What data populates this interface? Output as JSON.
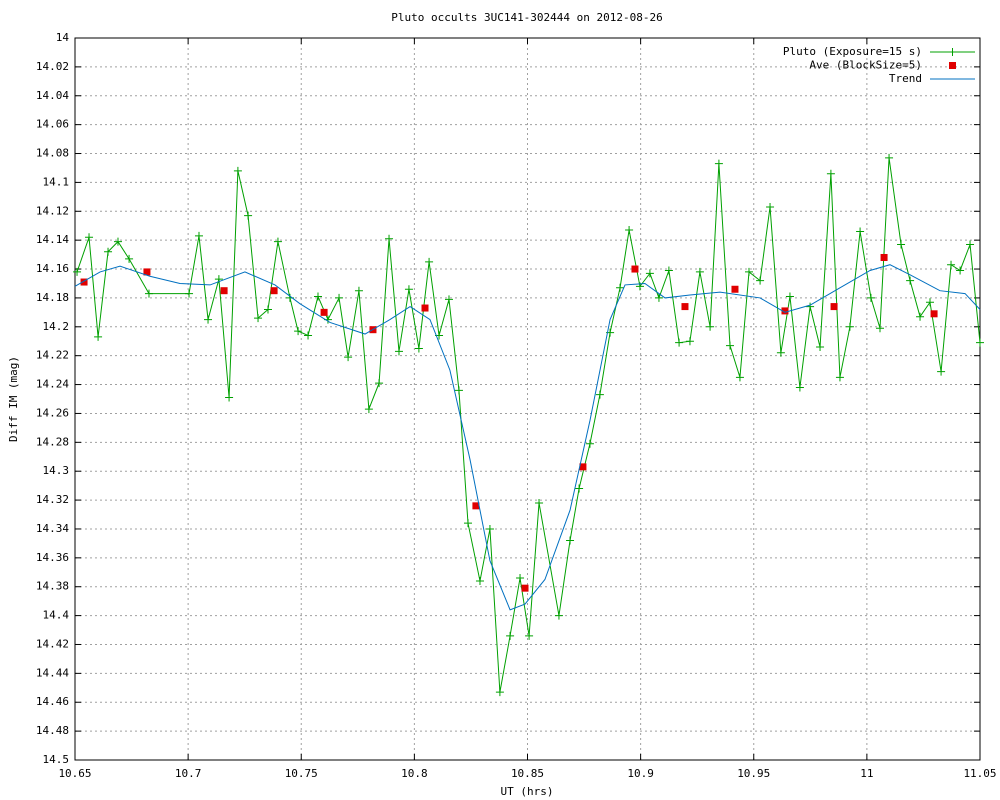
{
  "chart_data": {
    "type": "line",
    "title": "Pluto occults 3UC141-302444 on 2012-08-26",
    "x_label": "UT (hrs)",
    "y_label": "Diff IM (mag)",
    "xlim": [
      10.65,
      11.05
    ],
    "xticks": [
      10.65,
      10.7,
      10.75,
      10.8,
      10.85,
      10.9,
      10.95,
      11,
      11.05
    ],
    "ylim": [
      14.5,
      14
    ],
    "yticks": [
      14,
      14.02,
      14.04,
      14.06,
      14.08,
      14.1,
      14.12,
      14.14,
      14.16,
      14.18,
      14.2,
      14.22,
      14.24,
      14.26,
      14.28,
      14.3,
      14.32,
      14.34,
      14.36,
      14.38,
      14.4,
      14.42,
      14.44,
      14.46,
      14.48,
      14.5
    ],
    "grid": true,
    "legend": "upper right",
    "series": [
      {
        "name": "Pluto (Exposure=15 s)",
        "color": "#00a000",
        "style": "linespoints",
        "x": [
          10.6509,
          10.6562,
          10.6602,
          10.6646,
          10.669,
          10.6739,
          10.6827,
          10.7004,
          10.7048,
          10.7088,
          10.7136,
          10.7181,
          10.722,
          10.7265,
          10.7309,
          10.7353,
          10.7397,
          10.745,
          10.7486,
          10.753,
          10.7574,
          10.7618,
          10.7667,
          10.7707,
          10.7755,
          10.7799,
          10.7844,
          10.7888,
          10.7932,
          10.7976,
          10.802,
          10.8065,
          10.8109,
          10.8153,
          10.8197,
          10.8237,
          10.829,
          10.8334,
          10.8378,
          10.8423,
          10.8467,
          10.8507,
          10.8551,
          10.8639,
          10.8688,
          10.8728,
          10.8776,
          10.882,
          10.8865,
          10.8909,
          10.8949,
          10.8997,
          10.9041,
          10.9081,
          10.9125,
          10.917,
          10.9218,
          10.9262,
          10.9307,
          10.9346,
          10.9395,
          10.9439,
          10.9479,
          10.9528,
          10.9572,
          10.962,
          10.966,
          10.9704,
          10.9749,
          10.9793,
          10.9841,
          10.9881,
          10.9925,
          10.997,
          11.0018,
          11.0058,
          11.0098,
          11.0151,
          11.0191,
          11.0235,
          11.0279,
          11.0328,
          11.0372,
          11.0412,
          11.0456,
          11.05
        ],
        "values": [
          14.162,
          14.138,
          14.207,
          14.148,
          14.141,
          14.153,
          14.177,
          14.177,
          14.137,
          14.195,
          14.167,
          14.249,
          14.092,
          14.123,
          14.194,
          14.188,
          14.141,
          14.18,
          14.203,
          14.206,
          14.179,
          14.195,
          14.18,
          14.221,
          14.175,
          14.257,
          14.239,
          14.139,
          14.217,
          14.174,
          14.215,
          14.155,
          14.206,
          14.181,
          14.244,
          14.336,
          14.376,
          14.34,
          14.453,
          14.414,
          14.374,
          14.414,
          14.322,
          14.4,
          14.348,
          14.312,
          14.281,
          14.247,
          14.204,
          14.173,
          14.133,
          14.172,
          14.163,
          14.18,
          14.161,
          14.211,
          14.21,
          14.162,
          14.2,
          14.087,
          14.213,
          14.235,
          14.162,
          14.168,
          14.117,
          14.218,
          14.179,
          14.242,
          14.186,
          14.214,
          14.094,
          14.235,
          14.2,
          14.134,
          14.18,
          14.201,
          14.083,
          14.143,
          14.168,
          14.193,
          14.183,
          14.231,
          14.157,
          14.161,
          14.143,
          14.211
        ]
      },
      {
        "name": "Ave (BlockSize=5)",
        "color": "#e00000",
        "style": "points",
        "x": [
          10.654,
          10.6818,
          10.7159,
          10.738,
          10.7601,
          10.7817,
          10.8047,
          10.8272,
          10.8489,
          10.8745,
          10.8975,
          10.9196,
          10.9417,
          10.9638,
          10.9855,
          11.0076,
          11.0297
        ],
        "values": [
          14.169,
          14.162,
          14.175,
          14.175,
          14.19,
          14.202,
          14.187,
          14.324,
          14.381,
          14.297,
          14.16,
          14.186,
          14.174,
          14.189,
          14.186,
          14.152,
          14.191
        ]
      },
      {
        "name": "Trend",
        "color": "#0070c0",
        "style": "line",
        "x": [
          10.65,
          10.6611,
          10.6699,
          10.6831,
          10.6964,
          10.7097,
          10.7251,
          10.7384,
          10.7494,
          10.7627,
          10.7782,
          10.7892,
          10.7981,
          10.8069,
          10.8157,
          10.8246,
          10.8334,
          10.8423,
          10.8489,
          10.8577,
          10.8688,
          10.8776,
          10.8865,
          10.8931,
          10.9019,
          10.9108,
          10.9218,
          10.9351,
          10.9528,
          10.9638,
          10.9749,
          10.9881,
          11.0014,
          11.0102,
          11.0191,
          11.0323,
          11.0434,
          11.05
        ],
        "values": [
          14.172,
          14.162,
          14.158,
          14.165,
          14.17,
          14.171,
          14.162,
          14.171,
          14.184,
          14.197,
          14.205,
          14.195,
          14.186,
          14.195,
          14.23,
          14.292,
          14.362,
          14.396,
          14.392,
          14.375,
          14.327,
          14.265,
          14.195,
          14.171,
          14.17,
          14.18,
          14.178,
          14.176,
          14.18,
          14.19,
          14.185,
          14.173,
          14.161,
          14.157,
          14.164,
          14.175,
          14.177,
          14.188
        ]
      }
    ]
  }
}
